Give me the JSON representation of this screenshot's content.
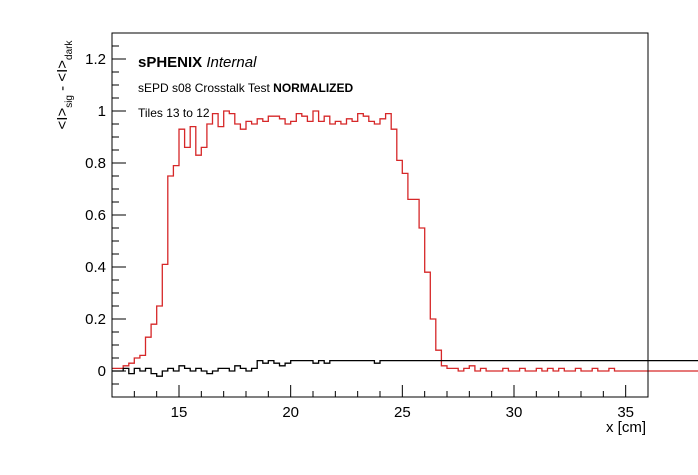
{
  "chart_data": {
    "type": "line",
    "style": "step-histogram",
    "xlabel": "x [cm]",
    "ylabel_parts": [
      "<I>",
      "sig",
      " - <I>",
      "dark"
    ],
    "xlim": [
      12,
      36
    ],
    "ylim": [
      -0.1,
      1.3
    ],
    "x_major_ticks": [
      15,
      20,
      25,
      30,
      35
    ],
    "y_major_ticks": [
      0,
      0.2,
      0.4,
      0.6,
      0.8,
      1,
      1.2
    ],
    "x_tick_labels": [
      "15",
      "20",
      "25",
      "30",
      "35"
    ],
    "y_tick_labels": [
      "0",
      "0.2",
      "0.4",
      "0.6",
      "0.8",
      "1",
      "1.2"
    ],
    "grid": false,
    "annotations": {
      "brand_bold": "sPHENIX",
      "brand_italic": "Internal",
      "test_prefix": "sEPD s08 Crosstalk Test",
      "test_bold": "NORMALIZED",
      "tiles": "Tiles 13 to 12"
    },
    "bin_edges_start": 12,
    "bin_width": 0.25,
    "series": [
      {
        "color": "#d62728",
        "values": [
          0.01,
          0.01,
          0.02,
          0.03,
          0.05,
          0.06,
          0.13,
          0.18,
          0.25,
          0.41,
          0.75,
          0.79,
          0.93,
          0.86,
          0.94,
          0.83,
          0.86,
          0.95,
          0.99,
          0.94,
          1.0,
          0.99,
          0.95,
          0.93,
          0.96,
          0.95,
          0.97,
          0.96,
          0.98,
          0.98,
          0.97,
          0.95,
          0.96,
          0.99,
          0.98,
          0.96,
          1.0,
          0.96,
          0.98,
          0.95,
          0.96,
          0.95,
          0.97,
          0.96,
          0.99,
          0.98,
          0.96,
          0.95,
          0.97,
          0.99,
          0.93,
          0.81,
          0.76,
          0.66,
          0.66,
          0.55,
          0.38,
          0.2,
          0.08,
          0.02,
          0.01,
          0.01,
          0.0,
          0.01,
          0.02,
          0.0,
          0.01,
          0.0,
          0.0,
          0.0,
          0.01,
          0.0,
          0.0,
          0.01,
          0.0,
          0.0,
          0.01,
          0.0,
          0.01,
          0.0,
          0.01,
          0.0,
          0.0,
          0.01,
          0.0,
          0.0,
          0.01,
          0.0,
          0.0,
          0.01,
          0.0,
          0.0,
          0.0,
          0.0,
          0.0,
          0.0,
          0.0,
          0.0,
          0.0,
          0.0,
          0.0,
          0.0,
          0.0,
          0.0,
          0.0,
          0.0,
          0.0,
          0.0,
          0.01,
          0.01,
          0.0,
          0.01,
          0.0,
          0.0,
          0.01,
          0.01,
          0.0,
          0.0,
          0.01,
          0.01,
          0.0,
          0.0,
          0.01,
          0.02,
          0.01,
          0.01,
          0.0,
          0.01,
          0.0,
          0.01,
          0.01,
          0.0,
          0.0,
          0.02,
          0.0,
          0.0,
          0.0,
          0.0,
          0.0,
          0.0,
          0.0,
          0.0,
          0.0,
          0.0,
          0.0,
          0.0,
          0.0,
          0.0,
          0.0,
          0.0
        ]
      },
      {
        "color": "#000000",
        "values": [
          0.0,
          0.0,
          0.01,
          -0.01,
          0.01,
          0.0,
          0.01,
          -0.01,
          -0.02,
          0.0,
          0.01,
          0.0,
          0.02,
          0.01,
          0.0,
          0.01,
          0.0,
          -0.01,
          0.0,
          0.01,
          0.01,
          0.0,
          0.02,
          0.01,
          0.0,
          0.01,
          0.04,
          0.03,
          0.04,
          0.03,
          0.02,
          0.03,
          0.04,
          0.04,
          0.04,
          0.04,
          0.03,
          0.04,
          0.03,
          0.04,
          0.04,
          0.04,
          0.04,
          0.04,
          0.04,
          0.04,
          0.04,
          0.03,
          0.04,
          0.04,
          0.04,
          0.04,
          0.04,
          0.04,
          0.04,
          0.04,
          0.04,
          0.04,
          0.04,
          0.04,
          0.04,
          0.04,
          0.04,
          0.04,
          0.04,
          0.04,
          0.04,
          0.04,
          0.04,
          0.04,
          0.04,
          0.04,
          0.04,
          0.04,
          0.04,
          0.04,
          0.04,
          0.04,
          0.04,
          0.04,
          0.04,
          0.04,
          0.04,
          0.04,
          0.04,
          0.04,
          0.04,
          0.04,
          0.04,
          0.04,
          0.04,
          0.04,
          0.04,
          0.04,
          0.04,
          0.04,
          0.04,
          0.04,
          0.04,
          0.04,
          0.04,
          0.04,
          0.04,
          0.04,
          0.04,
          0.04,
          0.04,
          0.04,
          0.04,
          0.04,
          0.04,
          0.04,
          0.04,
          0.04,
          0.04,
          0.04,
          0.04,
          0.04,
          0.04,
          0.04,
          0.04,
          0.04,
          0.04,
          0.04,
          0.04,
          0.04,
          0.04,
          0.04,
          0.04,
          0.04,
          0.04,
          0.04,
          0.04,
          0.04,
          0.04,
          0.04,
          0.04,
          0.04,
          0.04,
          0.04,
          0.04,
          0.04,
          0.04,
          0.04,
          0.04,
          0.04,
          0.04,
          0.04
        ]
      }
    ]
  }
}
